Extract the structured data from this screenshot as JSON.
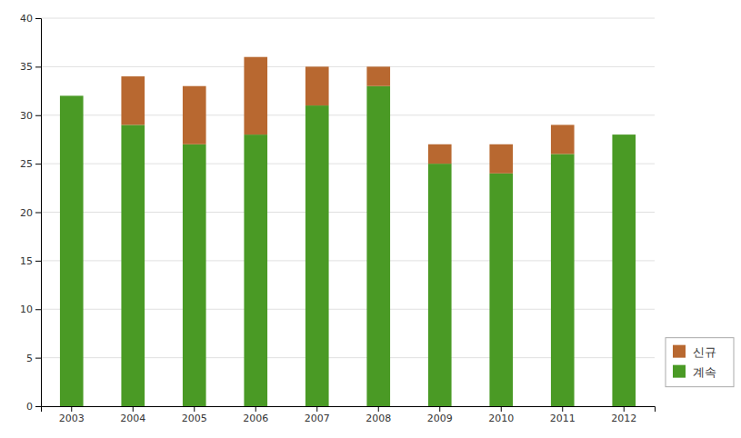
{
  "chart_data": {
    "type": "bar",
    "stacked": true,
    "categories": [
      "2003",
      "2004",
      "2005",
      "2006",
      "2007",
      "2008",
      "2009",
      "2010",
      "2011",
      "2012"
    ],
    "series": [
      {
        "name": "계속",
        "color": "#4a9a25",
        "values": [
          32,
          29,
          27,
          28,
          31,
          33,
          25,
          24,
          26,
          28
        ]
      },
      {
        "name": "신규",
        "color": "#b86830",
        "values": [
          0,
          5,
          6,
          8,
          4,
          2,
          2,
          3,
          3,
          0
        ]
      }
    ],
    "ylim": [
      0,
      40
    ],
    "yticks": [
      0,
      5,
      10,
      15,
      20,
      25,
      30,
      35,
      40
    ],
    "grid": true,
    "legend": "lower right"
  }
}
